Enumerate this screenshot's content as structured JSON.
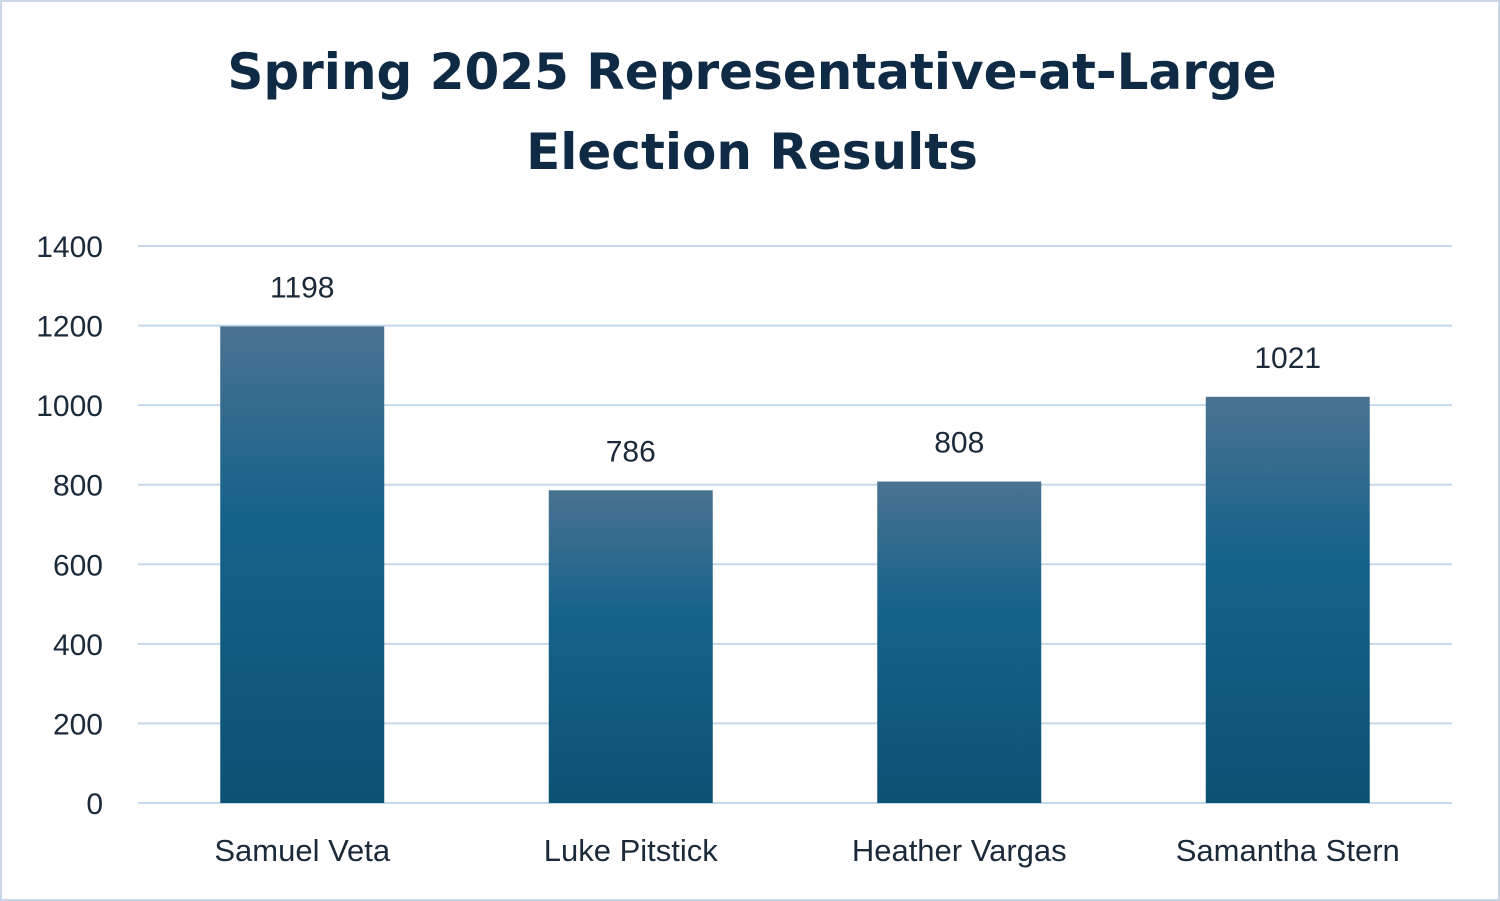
{
  "chart_data": {
    "type": "bar",
    "title_lines": [
      "Spring 2025 Representative-at-Large",
      "Election Results"
    ],
    "categories": [
      "Samuel Veta",
      "Luke Pitstick",
      "Heather Vargas",
      "Samantha Stern"
    ],
    "values": [
      1198,
      786,
      808,
      1021
    ],
    "data_labels": [
      "1198",
      "786",
      "808",
      "1021"
    ],
    "ylim": [
      0,
      1400
    ],
    "yticks": [
      0,
      200,
      400,
      600,
      800,
      1000,
      1200,
      1400
    ],
    "ytick_labels": [
      "0",
      "200",
      "400",
      "600",
      "800",
      "1000",
      "1200",
      "1400"
    ],
    "grid": true,
    "legend": "none",
    "colors": {
      "bar_top": "#4a7391",
      "bar_mid": "#15628a",
      "bar_bottom": "#0c5273",
      "grid": "#c5d7ea",
      "title": "#0f2a45"
    }
  }
}
